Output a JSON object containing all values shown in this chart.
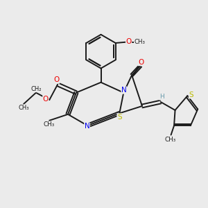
{
  "background_color": "#ebebeb",
  "bond_color": "#1a1a1a",
  "N_color": "#0000ee",
  "O_color": "#ee0000",
  "S_color": "#bbbb00",
  "H_color": "#6699aa",
  "figsize": [
    3.0,
    3.0
  ],
  "dpi": 100,
  "xlim": [
    0,
    10
  ],
  "ylim": [
    0,
    10
  ]
}
